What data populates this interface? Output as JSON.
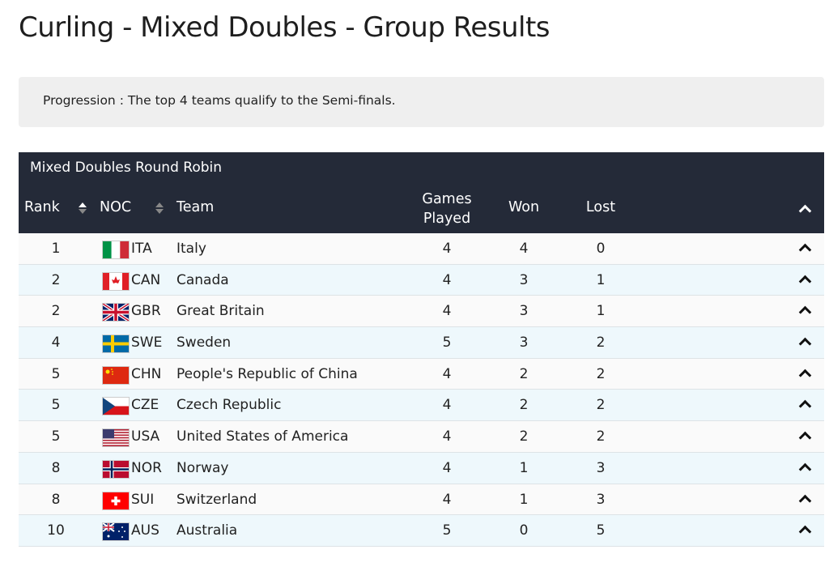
{
  "title": "Curling - Mixed Doubles - Group Results",
  "progression": "Progression : The top 4 teams qualify to the Semi-finals.",
  "table": {
    "caption": "Mixed Doubles Round Robin",
    "headers": {
      "rank": "Rank",
      "noc": "NOC",
      "team": "Team",
      "games_played_1": "Games",
      "games_played_2": "Played",
      "won": "Won",
      "lost": "Lost"
    },
    "rows": [
      {
        "rank": "1",
        "noc": "ITA",
        "team": "Italy",
        "gp": "4",
        "won": "4",
        "lost": "0"
      },
      {
        "rank": "2",
        "noc": "CAN",
        "team": "Canada",
        "gp": "4",
        "won": "3",
        "lost": "1"
      },
      {
        "rank": "2",
        "noc": "GBR",
        "team": "Great Britain",
        "gp": "4",
        "won": "3",
        "lost": "1"
      },
      {
        "rank": "4",
        "noc": "SWE",
        "team": "Sweden",
        "gp": "5",
        "won": "3",
        "lost": "2"
      },
      {
        "rank": "5",
        "noc": "CHN",
        "team": "People's Republic of China",
        "gp": "4",
        "won": "2",
        "lost": "2"
      },
      {
        "rank": "5",
        "noc": "CZE",
        "team": "Czech Republic",
        "gp": "4",
        "won": "2",
        "lost": "2"
      },
      {
        "rank": "5",
        "noc": "USA",
        "team": "United States of America",
        "gp": "4",
        "won": "2",
        "lost": "2"
      },
      {
        "rank": "8",
        "noc": "NOR",
        "team": "Norway",
        "gp": "4",
        "won": "1",
        "lost": "3"
      },
      {
        "rank": "8",
        "noc": "SUI",
        "team": "Switzerland",
        "gp": "4",
        "won": "1",
        "lost": "3"
      },
      {
        "rank": "10",
        "noc": "AUS",
        "team": "Australia",
        "gp": "5",
        "won": "0",
        "lost": "5"
      }
    ]
  }
}
